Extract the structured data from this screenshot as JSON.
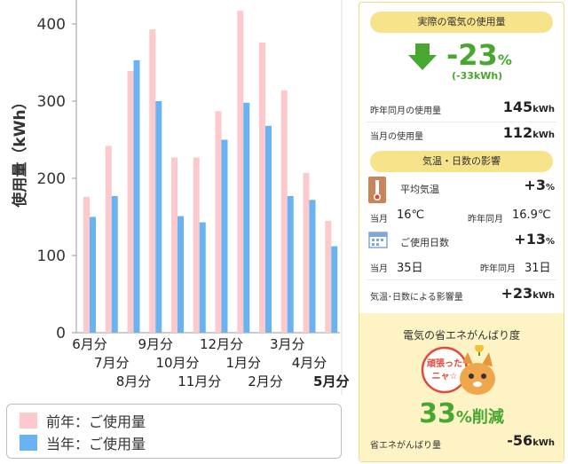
{
  "chart_data": {
    "type": "bar",
    "ylabel": "使用量（kWh）",
    "ylim": [
      0,
      400
    ],
    "yticks": [
      0,
      100,
      200,
      300,
      400
    ],
    "categories": [
      "6月分",
      "7月分",
      "8月分",
      "9月分",
      "10月分",
      "11月分",
      "12月分",
      "1月分",
      "2月分",
      "3月分",
      "4月分",
      "5月分"
    ],
    "series": [
      {
        "name": "前年：ご使用量",
        "color": "#fcc9cc",
        "values": [
          176,
          242,
          339,
          393,
          227,
          227,
          287,
          417,
          376,
          314,
          207,
          145
        ]
      },
      {
        "name": "当年：ご使用量",
        "color": "#6ab3f2",
        "values": [
          150,
          177,
          353,
          300,
          151,
          143,
          250,
          298,
          268,
          177,
          172,
          112
        ]
      }
    ],
    "grid": false
  },
  "panel": {
    "actual_title": "実際の電気の使用量",
    "actual_pct": "-23",
    "actual_pct_unit": "%",
    "actual_kwh": "(-33kWh)",
    "prev_label": "昨年同月の使用量",
    "prev_value": "145",
    "prev_unit": "kWh",
    "curr_label": "当月の使用量",
    "curr_value": "112",
    "curr_unit": "kWh",
    "weather_title": "気温・日数の影響",
    "temp_label": "平均気温",
    "temp_value": "+3",
    "temp_unit": "%",
    "temp_curr_label": "当月",
    "temp_curr_value": "16℃",
    "temp_prev_label": "昨年同月",
    "temp_prev_value": "16.9℃",
    "days_label": "ご使用日数",
    "days_value": "+13",
    "days_unit": "%",
    "days_curr_label": "当月",
    "days_curr_value": "35日",
    "days_prev_label": "昨年同月",
    "days_prev_value": "31日",
    "impact_label": "気温･日数による影響量",
    "impact_value": "+23",
    "impact_unit": "kWh",
    "effort_title": "電気の省エネがんばり度",
    "badge_text_1": "頑張った",
    "badge_text_2": "ニャ☆",
    "effort_pct": "33",
    "effort_suffix": "%削減",
    "saving_label": "省エネがんばり量",
    "saving_value": "-56",
    "saving_unit": "kWh"
  },
  "colors": {
    "accent_green": "#47a72e",
    "pill_yellow": "#f7e48a",
    "box_yellow": "#fdf3c4"
  }
}
